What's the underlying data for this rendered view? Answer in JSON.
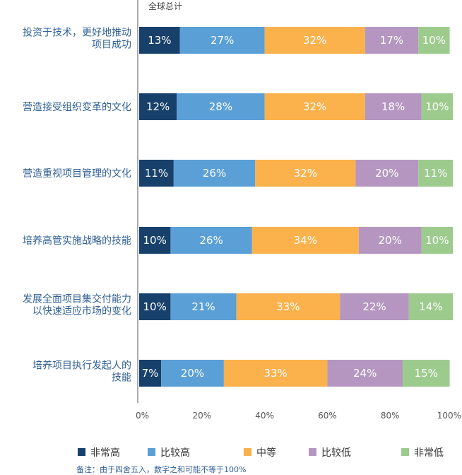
{
  "chart_data": {
    "type": "bar",
    "orientation": "horizontal",
    "stacked": true,
    "subtitle": "全球总计",
    "categories": [
      [
        "投资于技术，更好地推动",
        "项目成功"
      ],
      [
        "营造接受组织变革的文化"
      ],
      [
        "营造重视项目管理的文化"
      ],
      [
        "培养高管实施战略的技能"
      ],
      [
        "发展全面项目集交付能力",
        "以快速适应市场的变化"
      ],
      [
        "培养项目执行发起人的",
        "技能"
      ]
    ],
    "series": [
      {
        "name": "非常高",
        "color": "#17416b",
        "values": [
          13,
          12,
          11,
          10,
          10,
          7
        ]
      },
      {
        "name": "比较高",
        "color": "#5a9fd6",
        "values": [
          27,
          28,
          26,
          26,
          21,
          20
        ]
      },
      {
        "name": "中等",
        "color": "#fbb14c",
        "values": [
          32,
          32,
          32,
          34,
          33,
          33
        ]
      },
      {
        "name": "比较低",
        "color": "#b596c1",
        "values": [
          17,
          18,
          20,
          20,
          22,
          24
        ]
      },
      {
        "name": "非常低",
        "color": "#9ccb8d",
        "values": [
          10,
          10,
          11,
          10,
          14,
          15
        ]
      }
    ],
    "xlim": [
      0,
      100
    ],
    "xticks": [
      "0%",
      "20%",
      "40%",
      "60%",
      "80%",
      "100%"
    ],
    "value_suffix": "%",
    "legend_position": "bottom",
    "note": "备注：由于四舍五入，数字之和可能不等于100%"
  }
}
